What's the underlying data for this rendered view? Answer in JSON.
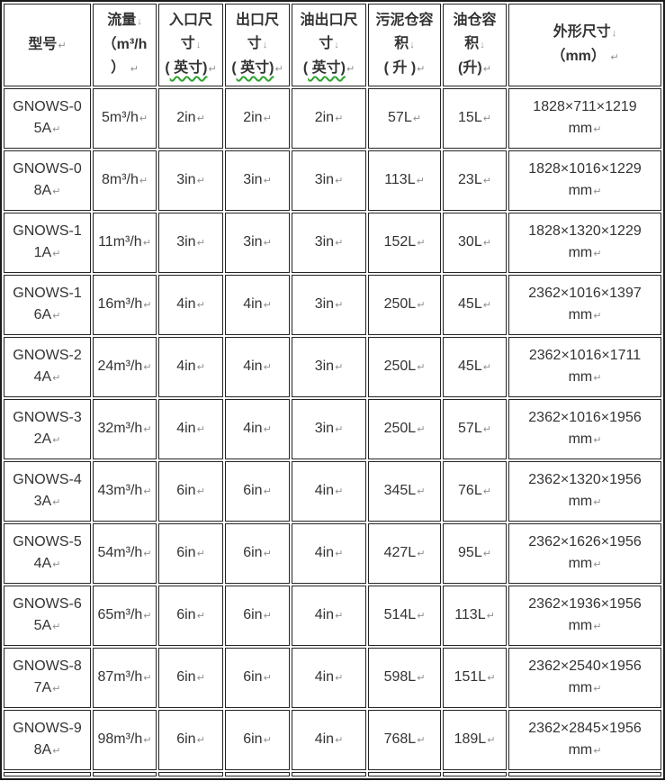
{
  "table": {
    "columns": [
      {
        "label": "型号↵"
      },
      {
        "label": "流量↓\n（m³/h\n） ↵"
      },
      {
        "label": "入口尺\n寸↓\n( 英寸)↵"
      },
      {
        "label": "出口尺\n寸↓\n( 英寸)↵"
      },
      {
        "label": "油出口尺\n寸↓\n( 英寸)↵"
      },
      {
        "label": "污泥仓容\n积↓\n( 升 )↵"
      },
      {
        "label": "油仓容\n积↓\n(升)↵"
      },
      {
        "label": "外形尺寸↓\n（mm） ↵"
      }
    ],
    "rows": [
      {
        "model": "GNOWS-0\n5A↵",
        "flow": "5m³/h↵",
        "inlet": "2in↵",
        "outlet": "2in↵",
        "oil_outlet": "2in↵",
        "sludge": "57L↵",
        "oil": "15L↵",
        "dims": "1828×711×1219\nmm↵"
      },
      {
        "model": "GNOWS-0\n8A↵",
        "flow": "8m³/h↵",
        "inlet": "3in↵",
        "outlet": "3in↵",
        "oil_outlet": "3in↵",
        "sludge": "113L↵",
        "oil": "23L↵",
        "dims": "1828×1016×1229\nmm↵"
      },
      {
        "model": "GNOWS-1\n1A↵",
        "flow": "11m³/h↵",
        "inlet": "3in↵",
        "outlet": "3in↵",
        "oil_outlet": "3in↵",
        "sludge": "152L↵",
        "oil": "30L↵",
        "dims": "1828×1320×1229\nmm↵"
      },
      {
        "model": "GNOWS-1\n6A↵",
        "flow": "16m³/h↵",
        "inlet": "4in↵",
        "outlet": "4in↵",
        "oil_outlet": "3in↵",
        "sludge": "250L↵",
        "oil": "45L↵",
        "dims": "2362×1016×1397\nmm↵"
      },
      {
        "model": "GNOWS-2\n4A↵",
        "flow": "24m³/h↵",
        "inlet": "4in↵",
        "outlet": "4in↵",
        "oil_outlet": "3in↵",
        "sludge": "250L↵",
        "oil": "45L↵",
        "dims": "2362×1016×1711\nmm↵"
      },
      {
        "model": "GNOWS-3\n2A↵",
        "flow": "32m³/h↵",
        "inlet": "4in↵",
        "outlet": "4in↵",
        "oil_outlet": "3in↵",
        "sludge": "250L↵",
        "oil": "57L↵",
        "dims": "2362×1016×1956\nmm↵"
      },
      {
        "model": "GNOWS-4\n3A↵",
        "flow": "43m³/h↵",
        "inlet": "6in↵",
        "outlet": "6in↵",
        "oil_outlet": "4in↵",
        "sludge": "345L↵",
        "oil": "76L↵",
        "dims": "2362×1320×1956\nmm↵"
      },
      {
        "model": "GNOWS-5\n4A↵",
        "flow": "54m³/h↵",
        "inlet": "6in↵",
        "outlet": "6in↵",
        "oil_outlet": "4in↵",
        "sludge": "427L↵",
        "oil": "95L↵",
        "dims": "2362×1626×1956\nmm↵"
      },
      {
        "model": "GNOWS-6\n5A↵",
        "flow": "65m³/h↵",
        "inlet": "6in↵",
        "outlet": "6in↵",
        "oil_outlet": "4in↵",
        "sludge": "514L↵",
        "oil": "113L↵",
        "dims": "2362×1936×1956\nmm↵"
      },
      {
        "model": "GNOWS-8\n7A↵",
        "flow": "87m³/h↵",
        "inlet": "6in↵",
        "outlet": "6in↵",
        "oil_outlet": "4in↵",
        "sludge": "598L↵",
        "oil": "151L↵",
        "dims": "2362×2540×1956\nmm↵"
      },
      {
        "model": "GNOWS-9\n8A↵",
        "flow": "98m³/h↵",
        "inlet": "6in↵",
        "outlet": "6in↵",
        "oil_outlet": "4in↵",
        "sludge": "768L↵",
        "oil": "189L↵",
        "dims": "2362×2845×1956\nmm↵"
      }
    ],
    "colors": {
      "border": "#1b1b1b",
      "text": "#333333",
      "format_mark": "#8f8f8f",
      "squiggle_green": "#2fa12f"
    }
  }
}
